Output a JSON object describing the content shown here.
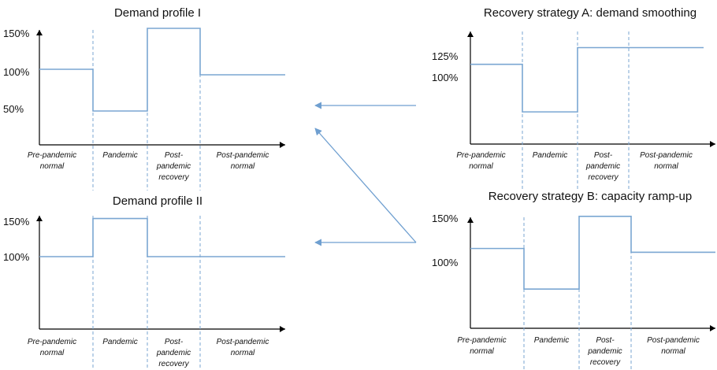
{
  "colors": {
    "line": "#7aa6d2",
    "axis": "#000000",
    "divider": "#7aa6d2",
    "arrow": "#6f9fd0",
    "text": "#111111"
  },
  "panels": [
    {
      "id": "demand-profile-1",
      "title": "Demand profile I",
      "ylabels": [
        "150%",
        "100%",
        "50%"
      ],
      "phases": [
        [
          "Pre-pandemic",
          "normal"
        ],
        [
          "Pandemic"
        ],
        [
          "Post-",
          "pandemic",
          "recovery"
        ],
        [
          "Post-pandemic",
          "normal"
        ]
      ],
      "levels": [
        100,
        47,
        152,
        93
      ]
    },
    {
      "id": "demand-profile-2",
      "title": "Demand profile II",
      "ylabels": [
        "150%",
        "100%"
      ],
      "phases": [
        [
          "Pre-pandemic",
          "normal"
        ],
        [
          "Pandemic"
        ],
        [
          "Post-",
          "pandemic",
          "recovery"
        ],
        [
          "Post-pandemic",
          "normal"
        ]
      ],
      "levels": [
        100,
        150,
        100,
        100
      ]
    },
    {
      "id": "strategy-a",
      "title": "Recovery strategy A: demand smoothing",
      "ylabels": [
        "125%",
        "100%"
      ],
      "phases": [
        [
          "Pre-pandemic",
          "normal"
        ],
        [
          "Pandemic"
        ],
        [
          "Post-",
          "pandemic",
          "recovery"
        ],
        [
          "Post-pandemic",
          "normal"
        ]
      ],
      "levels": [
        105,
        48,
        125,
        125
      ]
    },
    {
      "id": "strategy-b",
      "title": "Recovery strategy B: capacity ramp-up",
      "ylabels": [
        "150%",
        "100%"
      ],
      "phases": [
        [
          "Pre-pandemic",
          "normal"
        ],
        [
          "Pandemic"
        ],
        [
          "Post-",
          "pandemic",
          "recovery"
        ],
        [
          "Post-pandemic",
          "normal"
        ]
      ],
      "levels": [
        108,
        55,
        150,
        103
      ]
    }
  ]
}
